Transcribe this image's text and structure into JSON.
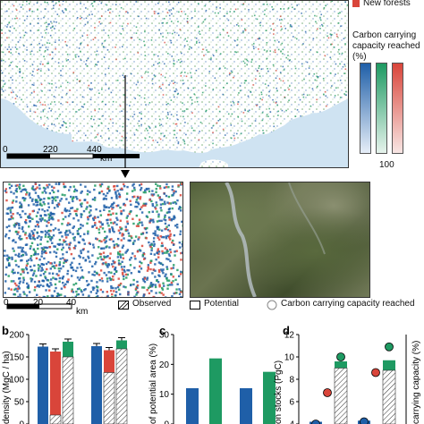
{
  "figure": {
    "panel_a": {
      "legend_new_forests": "New forests",
      "legend_carbon_title_1": "Carbon carrying",
      "legend_carbon_title_2": "capacity reached",
      "legend_carbon_title_3": "(%)",
      "legend_carbon_max": "100",
      "scale_ticks": [
        "0",
        "220",
        "440"
      ],
      "scale_unit": "km",
      "colors": {
        "blue": "#1f5fa8",
        "green": "#1e9a62",
        "red": "#d9453a",
        "sea": "#cfe3f2"
      }
    },
    "panel_zoom": {
      "scale_ticks": [
        "0",
        "20",
        "40"
      ],
      "scale_unit": "km"
    },
    "legend_row": {
      "observed": "Observed",
      "potential": "Potential",
      "carbon_capacity": "Carbon carrying capacity reached"
    },
    "panel_b": {
      "letter": "b",
      "ylabel": "density (MgC / ha)",
      "yticks": [
        "0",
        "50",
        "100",
        "150",
        "200"
      ]
    },
    "panel_c": {
      "letter": "c",
      "ylabel": "of potential area (%)",
      "yticks": [
        "0",
        "10",
        "20",
        "30"
      ]
    },
    "panel_d": {
      "letter": "d",
      "ylabel_left": "on stocks (PgC)",
      "yticks_left": [
        "4",
        "6",
        "8",
        "10",
        "12"
      ],
      "ylabel_right": "carrying capacity (%)"
    }
  },
  "chart_data": [
    {
      "type": "bar",
      "panel": "b",
      "ylim": [
        0,
        200
      ],
      "groups": [
        {
          "bars": [
            {
              "color": "#1f5fa8",
              "observed": 0,
              "potential": 173
            },
            {
              "color": "#d9453a",
              "observed": 20,
              "potential": 162
            },
            {
              "color": "#1e9a62",
              "observed": 150,
              "potential": 184
            }
          ]
        },
        {
          "bars": [
            {
              "color": "#1f5fa8",
              "observed": 0,
              "potential": 174
            },
            {
              "color": "#d9453a",
              "observed": 115,
              "potential": 165
            },
            {
              "color": "#1e9a62",
              "observed": 168,
              "potential": 187
            }
          ]
        }
      ]
    },
    {
      "type": "bar",
      "panel": "c",
      "ylim": [
        0,
        30
      ],
      "bars": [
        {
          "color": "#1f5fa8",
          "value": 12
        },
        {
          "color": "#1e9a62",
          "value": 22
        },
        {
          "color": "#1f5fa8",
          "value": 12
        },
        {
          "color": "#1e9a62",
          "value": 17.5
        }
      ]
    },
    {
      "type": "bar",
      "panel": "d",
      "ylim": [
        4,
        12
      ],
      "groups": [
        {
          "bars": [
            {
              "color": "#1f5fa8",
              "observed": 0,
              "potential": 4.2,
              "dot": 4.0
            },
            {
              "color": "#1e9a62",
              "observed": 9.0,
              "potential": 9.6,
              "dot": 10.0
            }
          ],
          "red_dot": 6.8
        },
        {
          "bars": [
            {
              "color": "#1f5fa8",
              "observed": 0,
              "potential": 4.3,
              "dot": 4.2
            },
            {
              "color": "#1e9a62",
              "observed": 8.8,
              "potential": 9.7,
              "dot": 10.9
            }
          ],
          "red_dot": 8.6
        }
      ]
    }
  ]
}
